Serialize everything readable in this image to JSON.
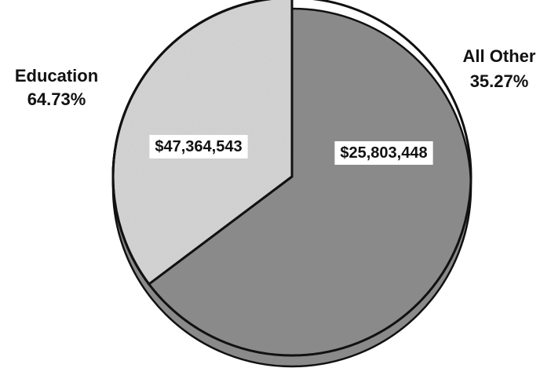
{
  "chart_data": {
    "type": "pie",
    "style": "3d",
    "title": "",
    "categories": [
      "Education",
      "All Other"
    ],
    "values": [
      47364543,
      25803448
    ],
    "value_labels": [
      "$47,364,543",
      "$25,803,448"
    ],
    "percent_labels": [
      "64.73%",
      "35.27%"
    ],
    "start_angle_deg": 0,
    "direction": "clockwise",
    "legend": "none",
    "slices": [
      {
        "name": "Education",
        "fill": "stipple-gray",
        "fill_color": "#d6d6d6"
      },
      {
        "name": "All Other",
        "fill": "grid-hatch",
        "fill_color": "#ffffff"
      }
    ]
  }
}
